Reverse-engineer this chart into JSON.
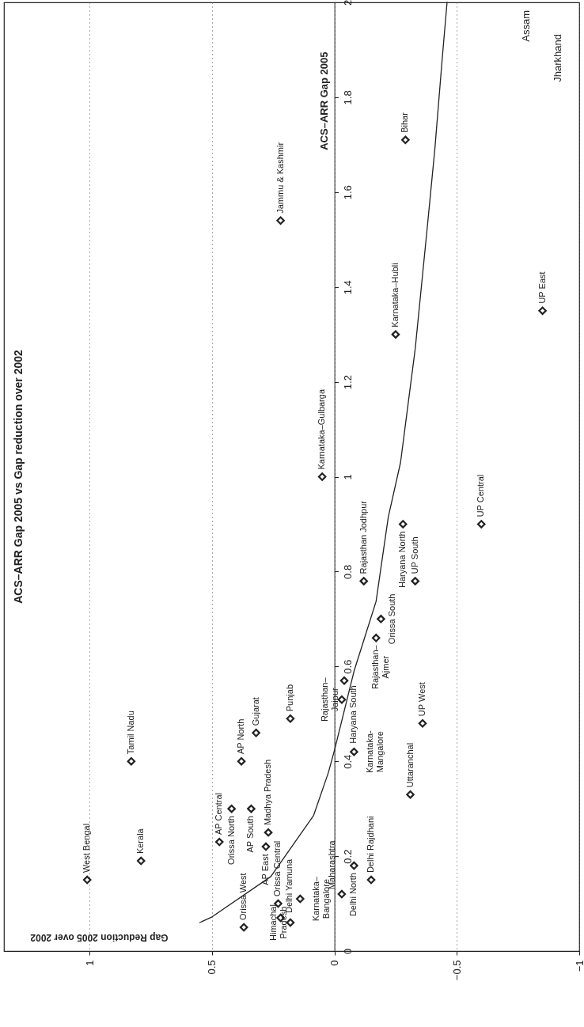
{
  "chart_data": {
    "type": "scatter",
    "title": "ACS–ARR Gap 2005 vs Gap reduction over 2002",
    "ylabel": "ACS–ARR Gap 2005",
    "xlim": [
      1.35,
      -1
    ],
    "xticks": [
      1,
      0.5,
      0,
      {
        "value": -0.5,
        "label": "−0.5"
      },
      {
        "value": -1,
        "label": "−1"
      }
    ],
    "ylim": [
      0,
      2
    ],
    "yticks": [
      0,
      0.2,
      0.4,
      0.6,
      0.8,
      1,
      1.2,
      1.4,
      1.6,
      1.8,
      2
    ],
    "grid": "x",
    "series": [
      {
        "color": "#222222",
        "marker": "diamond",
        "x": [
          1.01,
          0.79,
          0.83,
          0.47,
          0.42,
          0.38,
          0.32,
          0.34,
          0.27,
          0.28,
          0.23,
          0.14,
          0.18,
          -0.03,
          -0.08,
          -0.15,
          -0.08,
          -0.03,
          -0.04,
          -0.17,
          -0.19,
          -0.31,
          -0.36,
          0.05,
          -0.12,
          -0.33,
          -0.28,
          -0.6,
          -0.25,
          -0.85,
          0.22,
          -0.29,
          0.37,
          0.22,
          0.18
        ],
        "values": [
          0.15,
          0.19,
          0.4,
          0.23,
          0.3,
          0.4,
          0.46,
          0.3,
          0.25,
          0.22,
          0.1,
          0.11,
          0.49,
          0.12,
          0.18,
          0.15,
          0.42,
          0.53,
          0.57,
          0.66,
          0.7,
          0.33,
          0.48,
          1.0,
          0.78,
          0.78,
          0.9,
          0.9,
          1.3,
          1.35,
          1.54,
          1.71,
          0.05,
          0.07,
          0.06
        ]
      },
      {
        "type": "line",
        "name": "Gap Reduction 2005 over 2002",
        "color": "#222222",
        "x": [
          0.55,
          0.5,
          0.26,
          0.085,
          0.025,
          0.0,
          -0.08,
          -0.17,
          -0.22,
          -0.27,
          -0.33,
          -0.38,
          -0.41,
          -0.44,
          -0.46
        ],
        "values": [
          0.06,
          0.072,
          0.157,
          0.286,
          0.376,
          0.423,
          0.59,
          0.737,
          0.915,
          1.03,
          1.27,
          1.53,
          1.69,
          1.88,
          2.0
        ]
      }
    ],
    "annotations": [
      {
        "text": "West Bengal",
        "x": 1.01,
        "y": 0.15
      },
      {
        "text": "Kerala",
        "x": 0.79,
        "y": 0.19
      },
      {
        "text": "Tamil Nadu",
        "x": 0.83,
        "y": 0.4
      },
      {
        "text": "AP Central",
        "x": 0.47,
        "y": 0.23
      },
      {
        "text": "Orissa North",
        "x": 0.42,
        "y": 0.3
      },
      {
        "text": "AP North",
        "x": 0.38,
        "y": 0.4
      },
      {
        "text": "Gujarat",
        "x": 0.32,
        "y": 0.46
      },
      {
        "text": "AP South",
        "x": 0.34,
        "y": 0.3
      },
      {
        "text": "Madhya Pradesh",
        "x": 0.27,
        "y": 0.25
      },
      {
        "text": "AP East",
        "x": 0.28,
        "y": 0.22
      },
      {
        "text": "Orissa Central",
        "x": 0.23,
        "y": 0.1
      },
      {
        "text": "Karnataka–\nBangalore",
        "x": 0.14,
        "y": 0.11
      },
      {
        "text": "Punjab",
        "x": 0.18,
        "y": 0.49
      },
      {
        "text": "Maharashtra",
        "x": -0.03,
        "y": 0.12
      },
      {
        "text": "Delhi North",
        "x": -0.08,
        "y": 0.18
      },
      {
        "text": "Delhi Rajdhani",
        "x": -0.15,
        "y": 0.15
      },
      {
        "text": "Karnataka-\nMangalore",
        "x": -0.08,
        "y": 0.42
      },
      {
        "text": "Rajasthan–\nJaipur",
        "x": -0.03,
        "y": 0.53
      },
      {
        "text": "Haryana South",
        "x": -0.04,
        "y": 0.57
      },
      {
        "text": "Rajasthan–\nAjmer",
        "x": -0.17,
        "y": 0.66
      },
      {
        "text": "Orissa South",
        "x": -0.19,
        "y": 0.7
      },
      {
        "text": "Uttaranchal",
        "x": -0.31,
        "y": 0.33
      },
      {
        "text": "UP West",
        "x": -0.36,
        "y": 0.48
      },
      {
        "text": "Karnataka–Gulbarga",
        "x": 0.05,
        "y": 1.0
      },
      {
        "text": "Rajasthan Jodhpur",
        "x": -0.12,
        "y": 0.78
      },
      {
        "text": "UP South",
        "x": -0.33,
        "y": 0.78
      },
      {
        "text": "Haryana North",
        "x": -0.28,
        "y": 0.9
      },
      {
        "text": "UP Central",
        "x": -0.6,
        "y": 0.9
      },
      {
        "text": "Karnataka–Hubli",
        "x": -0.25,
        "y": 1.3
      },
      {
        "text": "UP East",
        "x": -0.85,
        "y": 1.35
      },
      {
        "text": "Jammu & Kashmir",
        "x": 0.22,
        "y": 1.54
      },
      {
        "text": "Bihar",
        "x": -0.29,
        "y": 1.71
      },
      {
        "text": "Orissa West",
        "x": 0.37,
        "y": 0.05
      },
      {
        "text": "Delhi Yamuna",
        "x": 0.22,
        "y": 0.07
      },
      {
        "text": "Himachal\nPradesh",
        "x": 0.18,
        "y": 0.06
      },
      "Assam",
      "Jharkhand"
    ]
  }
}
